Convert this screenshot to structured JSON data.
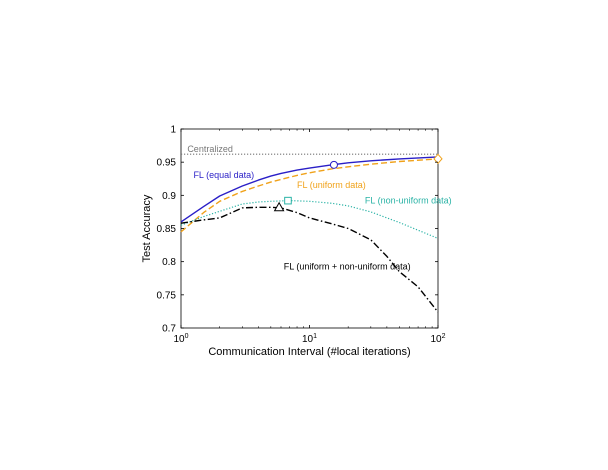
{
  "chart_data": {
    "type": "line",
    "xlabel": "Communication Interval (#local iterations)",
    "ylabel": "Test Accuracy",
    "xscale": "log",
    "xlim": [
      1,
      100
    ],
    "ylim": [
      0.7,
      1.0
    ],
    "xticks": [
      {
        "value": 1,
        "base": "10",
        "exp": "0"
      },
      {
        "value": 10,
        "base": "10",
        "exp": "1"
      },
      {
        "value": 100,
        "base": "10",
        "exp": "2"
      }
    ],
    "yticks": [
      {
        "value": 0.7,
        "label": "0.7"
      },
      {
        "value": 0.75,
        "label": "0.75"
      },
      {
        "value": 0.8,
        "label": "0.8"
      },
      {
        "value": 0.85,
        "label": "0.85"
      },
      {
        "value": 0.9,
        "label": "0.9"
      },
      {
        "value": 0.95,
        "label": "0.95"
      },
      {
        "value": 1.0,
        "label": "1"
      }
    ],
    "grid": false,
    "series": [
      {
        "name": "Centralized",
        "color": "#777777",
        "style": "dotted",
        "x": [
          1,
          100
        ],
        "y": [
          0.962,
          0.962
        ]
      },
      {
        "name": "FL (equal data)",
        "color": "#2a1fc7",
        "style": "solid",
        "x": [
          1,
          1.5,
          2,
          3,
          4,
          5,
          6,
          8,
          10,
          15,
          20,
          30,
          50,
          100
        ],
        "y": [
          0.86,
          0.883,
          0.899,
          0.914,
          0.923,
          0.929,
          0.933,
          0.938,
          0.941,
          0.946,
          0.949,
          0.952,
          0.955,
          0.958
        ]
      },
      {
        "name": "FL (uniform data)",
        "color": "#f0a21a",
        "style": "dashed",
        "x": [
          1,
          1.5,
          2,
          3,
          4,
          5,
          6,
          8,
          10,
          15,
          20,
          30,
          50,
          100
        ],
        "y": [
          0.845,
          0.874,
          0.891,
          0.906,
          0.914,
          0.92,
          0.924,
          0.93,
          0.934,
          0.94,
          0.943,
          0.947,
          0.951,
          0.955
        ]
      },
      {
        "name": "FL (non-uniform data)",
        "color": "#2ab3a6",
        "style": "dotted",
        "x": [
          1,
          1.5,
          2,
          3,
          4,
          5,
          7,
          10,
          15,
          20,
          30,
          50,
          100
        ],
        "y": [
          0.855,
          0.868,
          0.876,
          0.887,
          0.89,
          0.891,
          0.892,
          0.891,
          0.888,
          0.884,
          0.875,
          0.859,
          0.835
        ]
      },
      {
        "name": "FL (uniform + non-uniform data)",
        "color": "#000000",
        "style": "dashdot",
        "x": [
          1,
          1.5,
          2,
          3,
          4,
          5,
          6,
          8,
          10,
          15,
          20,
          30,
          40,
          50,
          70,
          100
        ],
        "y": [
          0.858,
          0.863,
          0.866,
          0.881,
          0.882,
          0.882,
          0.881,
          0.874,
          0.866,
          0.857,
          0.85,
          0.833,
          0.808,
          0.785,
          0.762,
          0.724
        ]
      }
    ],
    "markers": [
      {
        "series": "FL (equal data)",
        "shape": "circle",
        "x": 15.5,
        "y": 0.946,
        "color": "#2a1fc7"
      },
      {
        "series": "FL (uniform data)",
        "shape": "diamond",
        "x": 100,
        "y": 0.955,
        "color": "#f0a21a"
      },
      {
        "series": "FL (non-uniform data)",
        "shape": "square",
        "x": 6.8,
        "y": 0.892,
        "color": "#2ab3a6"
      },
      {
        "series": "FL (uniform + non-uniform data)",
        "shape": "triangle",
        "x": 5.8,
        "y": 0.882,
        "color": "#000000"
      }
    ],
    "annotations": [
      {
        "text": "Centralized",
        "x": 1.12,
        "y": 0.965,
        "color": "#777777"
      },
      {
        "text": "FL (equal data)",
        "x": 1.25,
        "y": 0.926,
        "color": "#2a1fc7"
      },
      {
        "text": "FL (uniform data)",
        "x": 8.0,
        "y": 0.911,
        "color": "#f0a21a"
      },
      {
        "text": "FL (non-uniform data)",
        "x": 27,
        "y": 0.888,
        "color": "#2ab3a6"
      },
      {
        "text": "FL (uniform + non-uniform data)",
        "x": 6.3,
        "y": 0.788,
        "color": "#000000"
      }
    ]
  }
}
